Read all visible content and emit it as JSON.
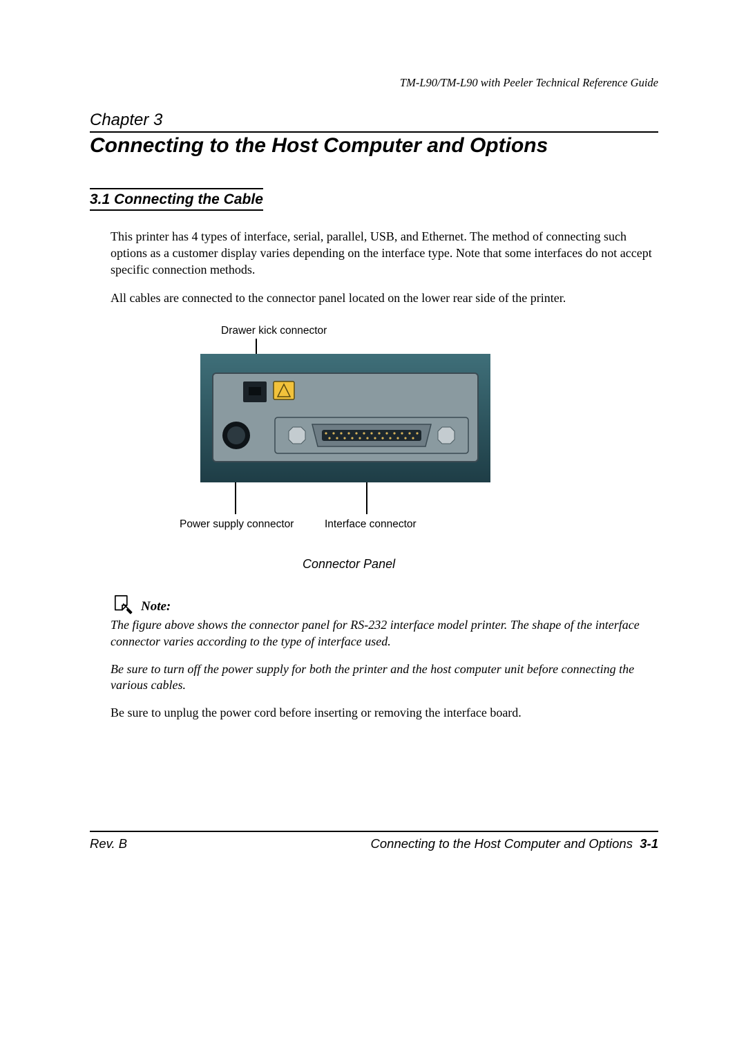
{
  "header": {
    "running_head": "TM-L90/TM-L90 with Peeler Technical Reference Guide"
  },
  "chapter": {
    "label": "Chapter 3",
    "title": "Connecting to the Host Computer and Options"
  },
  "section": {
    "number": "3.1",
    "heading": "Connecting the Cable",
    "heading_full": "3.1  Connecting the Cable",
    "paragraphs": [
      "This printer has 4 types of interface, serial, parallel, USB, and Ethernet. The method of connecting such options as a customer display varies depending on the interface type. Note that some interfaces do not accept specific connection methods.",
      "All cables are connected to the connector panel located on the lower rear side of the printer."
    ]
  },
  "figure": {
    "label_top": "Drawer kick connector",
    "label_power": "Power supply connector",
    "label_interface": "Interface connector",
    "caption": "Connector Panel",
    "photo": {
      "bg_gradient_top": "#3f6f79",
      "bg_gradient_bottom": "#1e3d46",
      "plate_fill": "#8a9aa0",
      "plate_stroke": "#3b4a52",
      "rj_fill": "#1a2228",
      "warning_fill": "#f2c23b",
      "warning_stroke": "#5a4a10",
      "din_outer": "#0e1418",
      "din_inner": "#2c3940",
      "serial_fill": "#6e7d85",
      "serial_slot": "#1c272d",
      "pin_color": "#d8b35a",
      "screw_fill": "#c4ccd0",
      "screw_stroke": "#4a5a60"
    }
  },
  "note": {
    "label": "Note:",
    "paragraphs": [
      "The figure above shows the connector panel for RS-232 interface model printer. The shape of the interface connector varies according to the type of interface used.",
      "Be sure to turn off the power supply for both the printer and the host computer unit before connecting the various cables."
    ]
  },
  "post_note_paragraph": "Be sure to unplug the power cord before inserting or removing the interface board.",
  "footer": {
    "left": "Rev. B",
    "right_text": "Connecting to the Host Computer and Options",
    "page_number": "3-1"
  }
}
